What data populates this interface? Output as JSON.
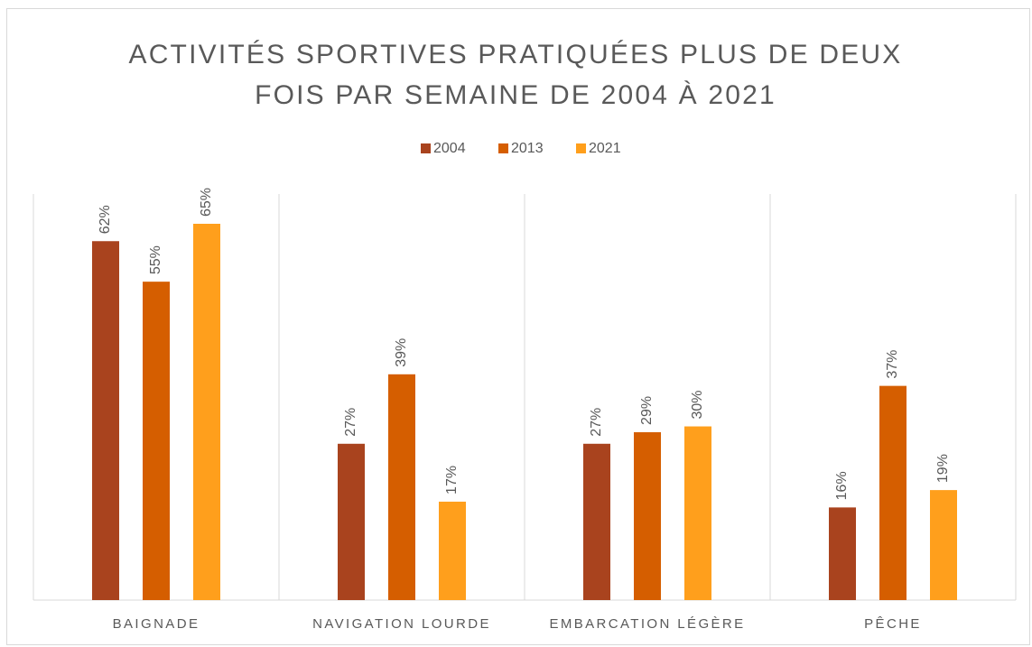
{
  "chart_data": {
    "type": "bar",
    "title": "ACTIVITÉS SPORTIVES PRATIQUÉES PLUS DE DEUX FOIS PAR SEMAINE DE 2004 À 2021",
    "categories": [
      "BAIGNADE",
      "NAVIGATION LOURDE",
      "EMBARCATION LÉGÈRE",
      "PÊCHE"
    ],
    "series": [
      {
        "name": "2004",
        "color": "#a9431e",
        "values": [
          62,
          27,
          27,
          16
        ],
        "value_labels": [
          "62%",
          "27%",
          "27%",
          "16%"
        ]
      },
      {
        "name": "2013",
        "color": "#d55e00",
        "values": [
          55,
          39,
          29,
          37
        ],
        "value_labels": [
          "55%",
          "39%",
          "29%",
          "37%"
        ]
      },
      {
        "name": "2021",
        "color": "#ff9f1c",
        "values": [
          65,
          17,
          30,
          19
        ],
        "value_labels": [
          "65%",
          "17%",
          "30%",
          "19%"
        ]
      }
    ]
  }
}
